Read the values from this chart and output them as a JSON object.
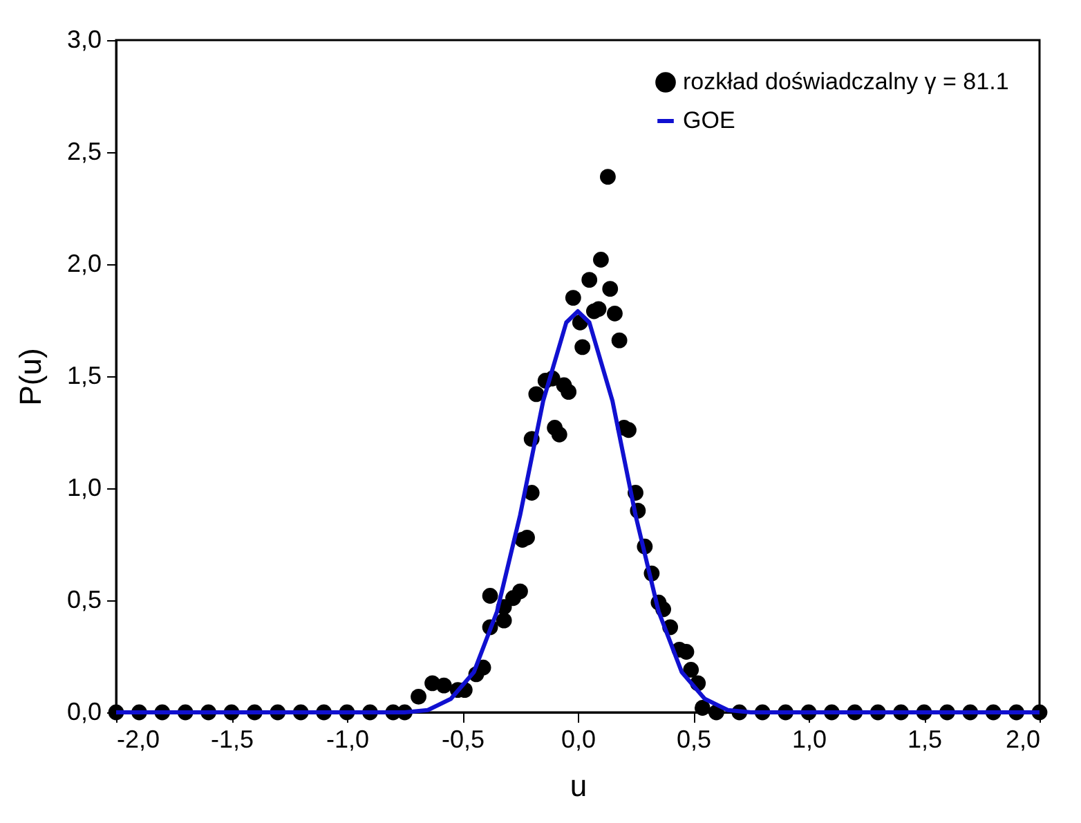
{
  "chart_data": {
    "type": "scatter",
    "xlabel": "u",
    "ylabel": "P(u)",
    "xlim": [
      -2.0,
      2.0
    ],
    "ylim": [
      0,
      3.0
    ],
    "xticks": [
      {
        "value": -2,
        "label": "-2,0"
      },
      {
        "value": -1.5,
        "label": "-1,5"
      },
      {
        "value": -1,
        "label": "-1,0"
      },
      {
        "value": -0.5,
        "label": "-0,5"
      },
      {
        "value": 0,
        "label": "0,0"
      },
      {
        "value": 0.5,
        "label": "0,5"
      },
      {
        "value": 1,
        "label": "1,0"
      },
      {
        "value": 1.5,
        "label": "1,5"
      },
      {
        "value": 2,
        "label": "2,0"
      }
    ],
    "yticks": [
      {
        "value": 0,
        "label": "0,0"
      },
      {
        "value": 0.5,
        "label": "0,5"
      },
      {
        "value": 1,
        "label": "1,0"
      },
      {
        "value": 1.5,
        "label": "1,5"
      },
      {
        "value": 2,
        "label": "2,0"
      },
      {
        "value": 2.5,
        "label": "2,5"
      },
      {
        "value": 3,
        "label": "3,0"
      }
    ],
    "legend": "top right",
    "grid": false,
    "series": [
      {
        "name": "rozkład doświadczalny γ = 81.1",
        "marker": "circle",
        "color": "#000000",
        "x": [
          -2.0,
          -1.9,
          -1.8,
          -1.7,
          -1.6,
          -1.5,
          -1.4,
          -1.3,
          -1.2,
          -1.1,
          -1.0,
          -0.9,
          -0.8,
          -0.75,
          -0.69,
          -0.63,
          -0.58,
          -0.52,
          -0.49,
          -0.44,
          -0.41,
          -0.38,
          -0.38,
          -0.32,
          -0.32,
          -0.28,
          -0.25,
          -0.24,
          -0.22,
          -0.2,
          -0.2,
          -0.18,
          -0.14,
          -0.11,
          -0.1,
          -0.08,
          -0.06,
          -0.04,
          -0.02,
          0.01,
          0.02,
          0.05,
          0.07,
          0.09,
          0.1,
          0.13,
          0.14,
          0.16,
          0.18,
          0.2,
          0.22,
          0.25,
          0.26,
          0.29,
          0.32,
          0.35,
          0.37,
          0.4,
          0.44,
          0.47,
          0.49,
          0.52,
          0.54,
          0.6,
          0.7,
          0.8,
          0.9,
          1.0,
          1.1,
          1.2,
          1.3,
          1.4,
          1.5,
          1.6,
          1.7,
          1.8,
          1.9,
          2.0
        ],
        "values": [
          0,
          0,
          0,
          0,
          0,
          0,
          0,
          0,
          0,
          0,
          0,
          0,
          0,
          0,
          0.07,
          0.13,
          0.12,
          0.1,
          0.1,
          0.17,
          0.2,
          0.52,
          0.38,
          0.47,
          0.41,
          0.51,
          0.54,
          0.77,
          0.78,
          1.22,
          0.98,
          1.42,
          1.48,
          1.49,
          1.27,
          1.24,
          1.46,
          1.43,
          1.85,
          1.74,
          1.63,
          1.93,
          1.79,
          1.8,
          2.02,
          2.39,
          1.89,
          1.78,
          1.66,
          1.27,
          1.26,
          0.98,
          0.9,
          0.74,
          0.62,
          0.49,
          0.46,
          0.38,
          0.28,
          0.27,
          0.19,
          0.13,
          0.02,
          0,
          0,
          0,
          0,
          0,
          0,
          0,
          0,
          0,
          0,
          0,
          0,
          0,
          0,
          0
        ]
      },
      {
        "name": "GOE",
        "type": "line",
        "color": "#1010d0",
        "x": [
          -2.0,
          -0.75,
          -0.65,
          -0.55,
          -0.45,
          -0.35,
          -0.25,
          -0.15,
          -0.05,
          0.0,
          0.05,
          0.15,
          0.25,
          0.35,
          0.45,
          0.55,
          0.65,
          0.75,
          2.0
        ],
        "values": [
          0,
          0,
          0.01,
          0.06,
          0.18,
          0.45,
          0.88,
          1.39,
          1.74,
          1.79,
          1.74,
          1.39,
          0.88,
          0.45,
          0.18,
          0.06,
          0.01,
          0,
          0
        ]
      }
    ]
  }
}
